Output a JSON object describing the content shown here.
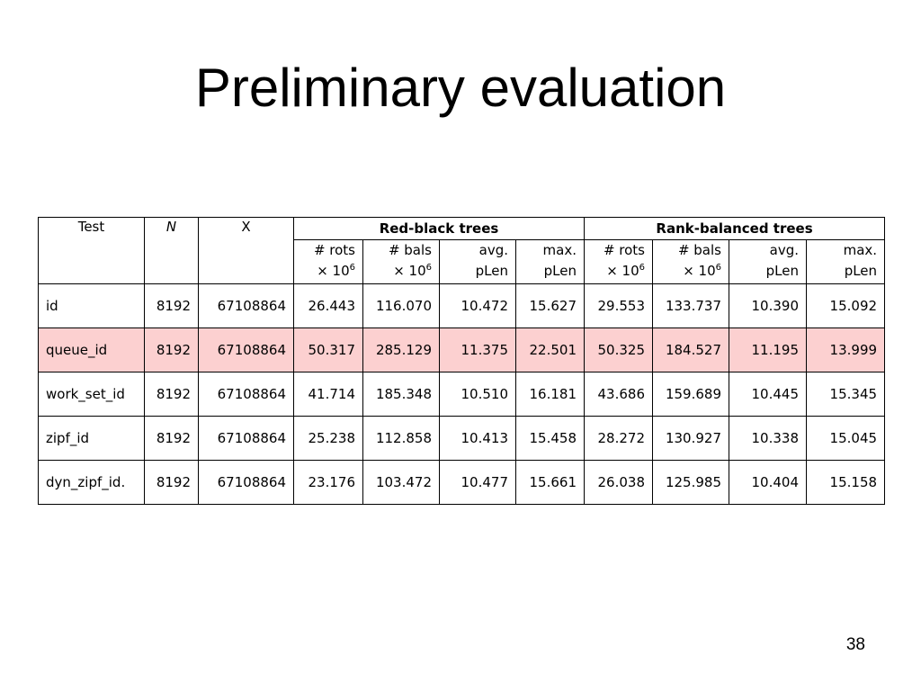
{
  "title": "Preliminary evaluation",
  "slide_number": "38",
  "table": {
    "col_test": "Test",
    "col_n": "N",
    "col_x": "X",
    "group_rb": "Red-black trees",
    "group_rank": "Rank-balanced trees",
    "sub_headers": [
      {
        "line1": "# rots",
        "line2": "× 10",
        "sup": "6"
      },
      {
        "line1": "# bals",
        "line2": "× 10",
        "sup": "6"
      },
      {
        "line1": "avg.",
        "line2": "pLen",
        "sup": ""
      },
      {
        "line1": "max.",
        "line2": "pLen",
        "sup": ""
      },
      {
        "line1": "# rots",
        "line2": "× 10",
        "sup": "6"
      },
      {
        "line1": "# bals",
        "line2": "× 10",
        "sup": "6"
      },
      {
        "line1": "avg.",
        "line2": "pLen",
        "sup": ""
      },
      {
        "line1": "max.",
        "line2": "pLen",
        "sup": ""
      }
    ],
    "highlight_color": "#fcd0d0",
    "rows": [
      {
        "test": "id",
        "n": "8192",
        "x": "67108864",
        "highlight": false,
        "values": [
          "26.443",
          "116.070",
          "10.472",
          "15.627",
          "29.553",
          "133.737",
          "10.390",
          "15.092"
        ]
      },
      {
        "test": "queue_id",
        "n": "8192",
        "x": "67108864",
        "highlight": true,
        "values": [
          "50.317",
          "285.129",
          "11.375",
          "22.501",
          "50.325",
          "184.527",
          "11.195",
          "13.999"
        ]
      },
      {
        "test": "work_set_id",
        "n": "8192",
        "x": "67108864",
        "highlight": false,
        "values": [
          "41.714",
          "185.348",
          "10.510",
          "16.181",
          "43.686",
          "159.689",
          "10.445",
          "15.345"
        ]
      },
      {
        "test": "zipf_id",
        "n": "8192",
        "x": "67108864",
        "highlight": false,
        "values": [
          "25.238",
          "112.858",
          "10.413",
          "15.458",
          "28.272",
          "130.927",
          "10.338",
          "15.045"
        ]
      },
      {
        "test": "dyn_zipf_id.",
        "n": "8192",
        "x": "67108864",
        "highlight": false,
        "values": [
          "23.176",
          "103.472",
          "10.477",
          "15.661",
          "26.038",
          "125.985",
          "10.404",
          "15.158"
        ]
      }
    ]
  }
}
